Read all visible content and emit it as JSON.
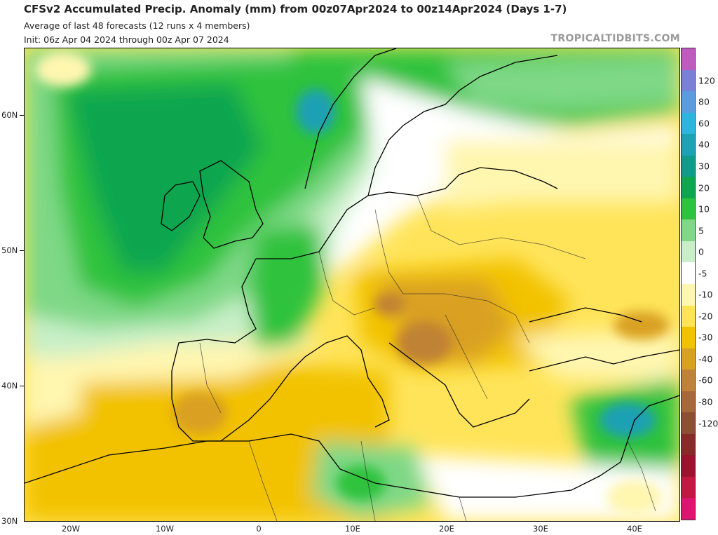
{
  "header": {
    "title": "CFSv2 Accumulated Precip. Anomaly (mm) from 00z07Apr2024 to 00z14Apr2024 (Days 1-7)",
    "subtitle_1": "Average of last 48 forecasts (12 runs x 4 members)",
    "subtitle_2": "Init: 06z Apr 04 2024 through 00z Apr 07 2024",
    "brand": "TROPICALTIDBITS.COM"
  },
  "axes": {
    "lat_labels": [
      "60N",
      "50N",
      "40N",
      "30N"
    ],
    "lon_labels": [
      "20W",
      "10W",
      "0",
      "10E",
      "20E",
      "30E",
      "40E"
    ]
  },
  "colorbar": {
    "labels": [
      "120",
      "80",
      "60",
      "40",
      "30",
      "20",
      "10",
      "5",
      "0",
      "-5",
      "-10",
      "-20",
      "-30",
      "-40",
      "-60",
      "-80",
      "-120"
    ],
    "colors": [
      "#c05ac0",
      "#7a80d8",
      "#5a9ce0",
      "#2fb4e0",
      "#1fa0b4",
      "#129a8a",
      "#10a650",
      "#2fc23c",
      "#7ed886",
      "#c8efc8",
      "#ffffff",
      "#fff6b0",
      "#ffe45a",
      "#f2c200",
      "#d9a024",
      "#c08236",
      "#a8683a",
      "#8e4e34",
      "#8a2a28",
      "#9a1430",
      "#c01840",
      "#e01470"
    ]
  },
  "map": {
    "region": "Europe / North Atlantic",
    "colors": {
      "wet_strong": "#10a650",
      "wet": "#2fc23c",
      "wet_light": "#7ed886",
      "wet_faint": "#c8efc8",
      "neutral": "#ffffff",
      "dry_faint": "#fff6b0",
      "dry_light": "#ffe45a",
      "dry": "#f2c200",
      "dry_moderate": "#d9a024",
      "dry_strong": "#c08236",
      "very_wet": "#1fa0b4"
    }
  }
}
